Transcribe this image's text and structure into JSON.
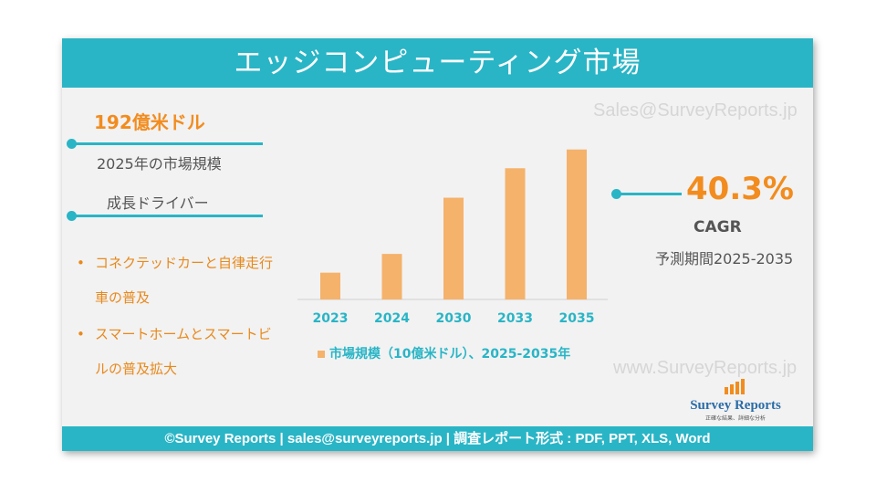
{
  "header": {
    "title": "エッジコンピューティング市場"
  },
  "watermarks": {
    "top": "Sales@SurveyReports.jp",
    "bottom": "www.SurveyReports.jp"
  },
  "left": {
    "metric": "192億米ドル",
    "metric_sub": "2025年の市場規模",
    "drivers_title": "成長ドライバー",
    "drivers": [
      {
        "line1": "コネクテッドカーと自律走行",
        "line2": "車の普及"
      },
      {
        "line1": "スマートホームとスマートビ",
        "line2": "ルの普及拡大"
      }
    ],
    "bullet_mark": "•"
  },
  "right": {
    "cagr_value": "40.3%",
    "cagr_label": "CAGR",
    "period": "予測期間2025-2035"
  },
  "logo": {
    "name": "Survey Reports",
    "tagline": "正確な結果、詳細な分析"
  },
  "footer": {
    "text": "©Survey Reports | sales@surveyreports.jp |  調査レポート形式 : PDF, PPT, XLS, Word"
  },
  "colors": {
    "accent": "#29b5c6",
    "bar": "#f5b26b",
    "highlight": "#f28c1e"
  },
  "chart_data": {
    "type": "bar",
    "categories": [
      "2023",
      "2024",
      "2030",
      "2033",
      "2035"
    ],
    "values": [
      10,
      17,
      38,
      49,
      56
    ],
    "legend": "市場規模（10億米ドル）、2025-2035年",
    "title": "",
    "xlabel": "",
    "ylabel": "",
    "ylim": [
      0,
      60
    ],
    "grid": false,
    "legend_position": "bottom"
  }
}
